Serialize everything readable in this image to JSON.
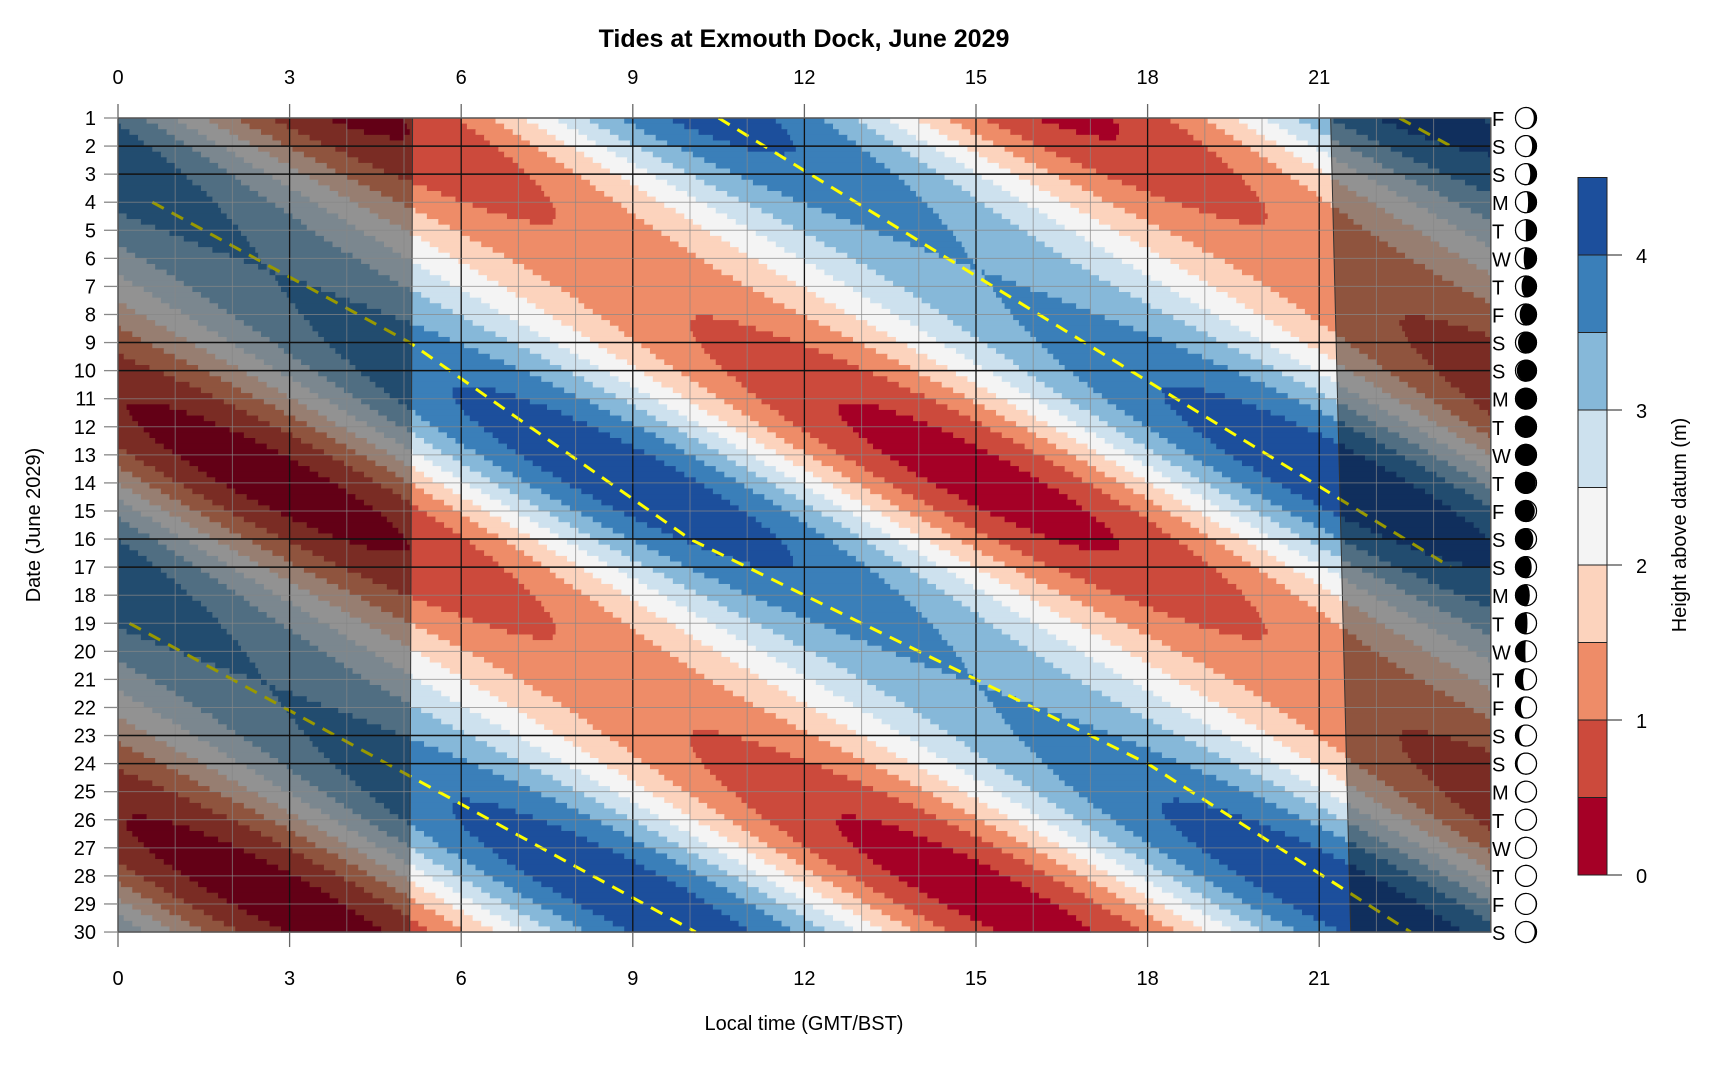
{
  "chart_data": {
    "type": "heatmap",
    "title": "Tides at Exmouth Dock, June 2029",
    "xlabel": "Local time (GMT/BST)",
    "ylabel": "Date (June 2029)",
    "colorbar_label": "Height above datum (m)",
    "xlim": [
      0,
      24
    ],
    "ylim": [
      1,
      30
    ],
    "x_ticks": [
      0,
      3,
      6,
      9,
      12,
      15,
      18,
      21
    ],
    "x_tick_labels": [
      "0",
      "3",
      "6",
      "9",
      "12",
      "15",
      "18",
      "21"
    ],
    "days": [
      1,
      2,
      3,
      4,
      5,
      6,
      7,
      8,
      9,
      10,
      11,
      12,
      13,
      14,
      15,
      16,
      17,
      18,
      19,
      20,
      21,
      22,
      23,
      24,
      25,
      26,
      27,
      28,
      29,
      30
    ],
    "day_labels": [
      "1",
      "2",
      "3",
      "4",
      "5",
      "6",
      "7",
      "8",
      "9",
      "10",
      "11",
      "12",
      "13",
      "14",
      "15",
      "16",
      "17",
      "18",
      "19",
      "20",
      "21",
      "22",
      "23",
      "24",
      "25",
      "26",
      "27",
      "28",
      "29",
      "30"
    ],
    "weekday_letters": [
      "F",
      "S",
      "S",
      "M",
      "T",
      "W",
      "T",
      "F",
      "S",
      "S",
      "M",
      "T",
      "W",
      "T",
      "F",
      "S",
      "S",
      "M",
      "T",
      "W",
      "T",
      "F",
      "S",
      "S",
      "M",
      "T",
      "W",
      "T",
      "F",
      "S"
    ],
    "moon_illumination": [
      0.87,
      0.79,
      0.7,
      0.6,
      0.49,
      0.39,
      0.29,
      0.2,
      0.12,
      0.06,
      0.02,
      0.0,
      0.01,
      0.03,
      0.08,
      0.15,
      0.23,
      0.32,
      0.43,
      0.53,
      0.64,
      0.74,
      0.82,
      0.9,
      0.95,
      0.99,
      1.0,
      0.99,
      0.96,
      0.91
    ],
    "moon_waxing": [
      false,
      false,
      false,
      false,
      false,
      false,
      false,
      false,
      false,
      false,
      false,
      false,
      true,
      true,
      true,
      true,
      true,
      true,
      true,
      true,
      true,
      true,
      true,
      true,
      true,
      true,
      true,
      false,
      false,
      false
    ],
    "weekend_lines": [
      2,
      3,
      9,
      10,
      16,
      17,
      23,
      24
    ],
    "levels": [
      0,
      0.5,
      1,
      1.5,
      2,
      2.5,
      3,
      3.5,
      4,
      4.5
    ],
    "level_colors": [
      "#a50026",
      "#cc4a3c",
      "#ee8c68",
      "#fcd3bd",
      "#f4f4f4",
      "#cde1ee",
      "#86b8d9",
      "#3a7fb9",
      "#1c4f9c"
    ],
    "colorbar_ticks": [
      0,
      1,
      2,
      3,
      4
    ],
    "colorbar_tick_labels": [
      "0",
      "1",
      "2",
      "3",
      "4"
    ],
    "tide_model": {
      "mean_level_m": 2.3,
      "period_h": 12.42,
      "high_water_day1_h": 10.5,
      "daily_lag_h": 0.84,
      "amplitude_spring_m": 2.05,
      "amplitude_neap_m": 1.2,
      "spring_day": 13.8,
      "spring_neap_cycle_days": 14.77
    },
    "high_water_tracks": [
      [
        [
          1,
          22.4
        ],
        [
          2,
          23.3
        ]
      ],
      [
        [
          1,
          10.5
        ],
        [
          17,
          23.3
        ]
      ],
      [
        [
          4,
          0.6
        ],
        [
          9,
          5.1
        ],
        [
          16,
          10.0
        ],
        [
          24,
          18.0
        ],
        [
          30,
          22.6
        ]
      ],
      [
        [
          19,
          0.2
        ],
        [
          30,
          10.1
        ]
      ]
    ],
    "daylight": {
      "sunrise_h": {
        "day1": 5.15,
        "day30": 5.1
      },
      "sunset_h": {
        "day1": 21.2,
        "day30": 21.55
      }
    },
    "highlight_color": "#ffff00",
    "night_shade_color": "#000000"
  }
}
